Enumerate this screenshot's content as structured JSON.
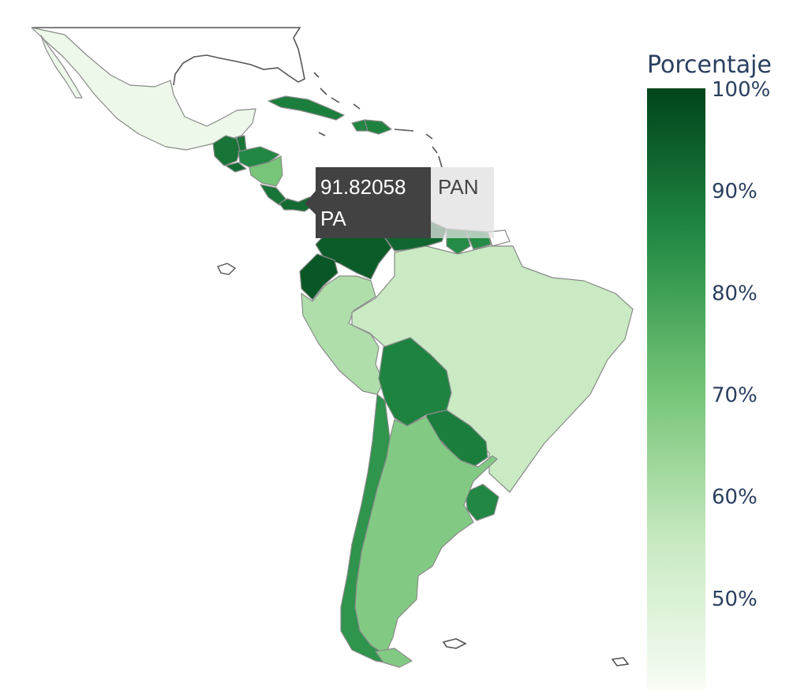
{
  "legend": {
    "title": "Porcentaje",
    "ticks": [
      "100%",
      "90%",
      "80%",
      "70%",
      "60%",
      "50%"
    ],
    "tick_values": [
      100,
      90,
      80,
      70,
      60,
      50
    ],
    "range": [
      41,
      100
    ],
    "colors": [
      "#f7fcf5",
      "#c7e9c0",
      "#74c476",
      "#238b45",
      "#00441b"
    ]
  },
  "tooltip": {
    "value": "91.82058",
    "code": "PAN",
    "label": "PA"
  },
  "chart_data": {
    "type": "choropleth",
    "title": "",
    "colorbar_title": "Porcentaje",
    "locations": [
      "MEX",
      "GTM",
      "BLZ",
      "HND",
      "SLV",
      "NIC",
      "CRI",
      "PAN",
      "CUB",
      "DOM",
      "HTI",
      "COL",
      "VEN",
      "GUY",
      "SUR",
      "ECU",
      "PER",
      "BRA",
      "BOL",
      "PRY",
      "CHL",
      "ARG",
      "URY"
    ],
    "values": [
      44,
      90,
      90,
      86,
      92,
      70,
      90,
      91.82058,
      88,
      87,
      86,
      95,
      93,
      85,
      85,
      96,
      60,
      55,
      87,
      88,
      83,
      68,
      86
    ]
  }
}
